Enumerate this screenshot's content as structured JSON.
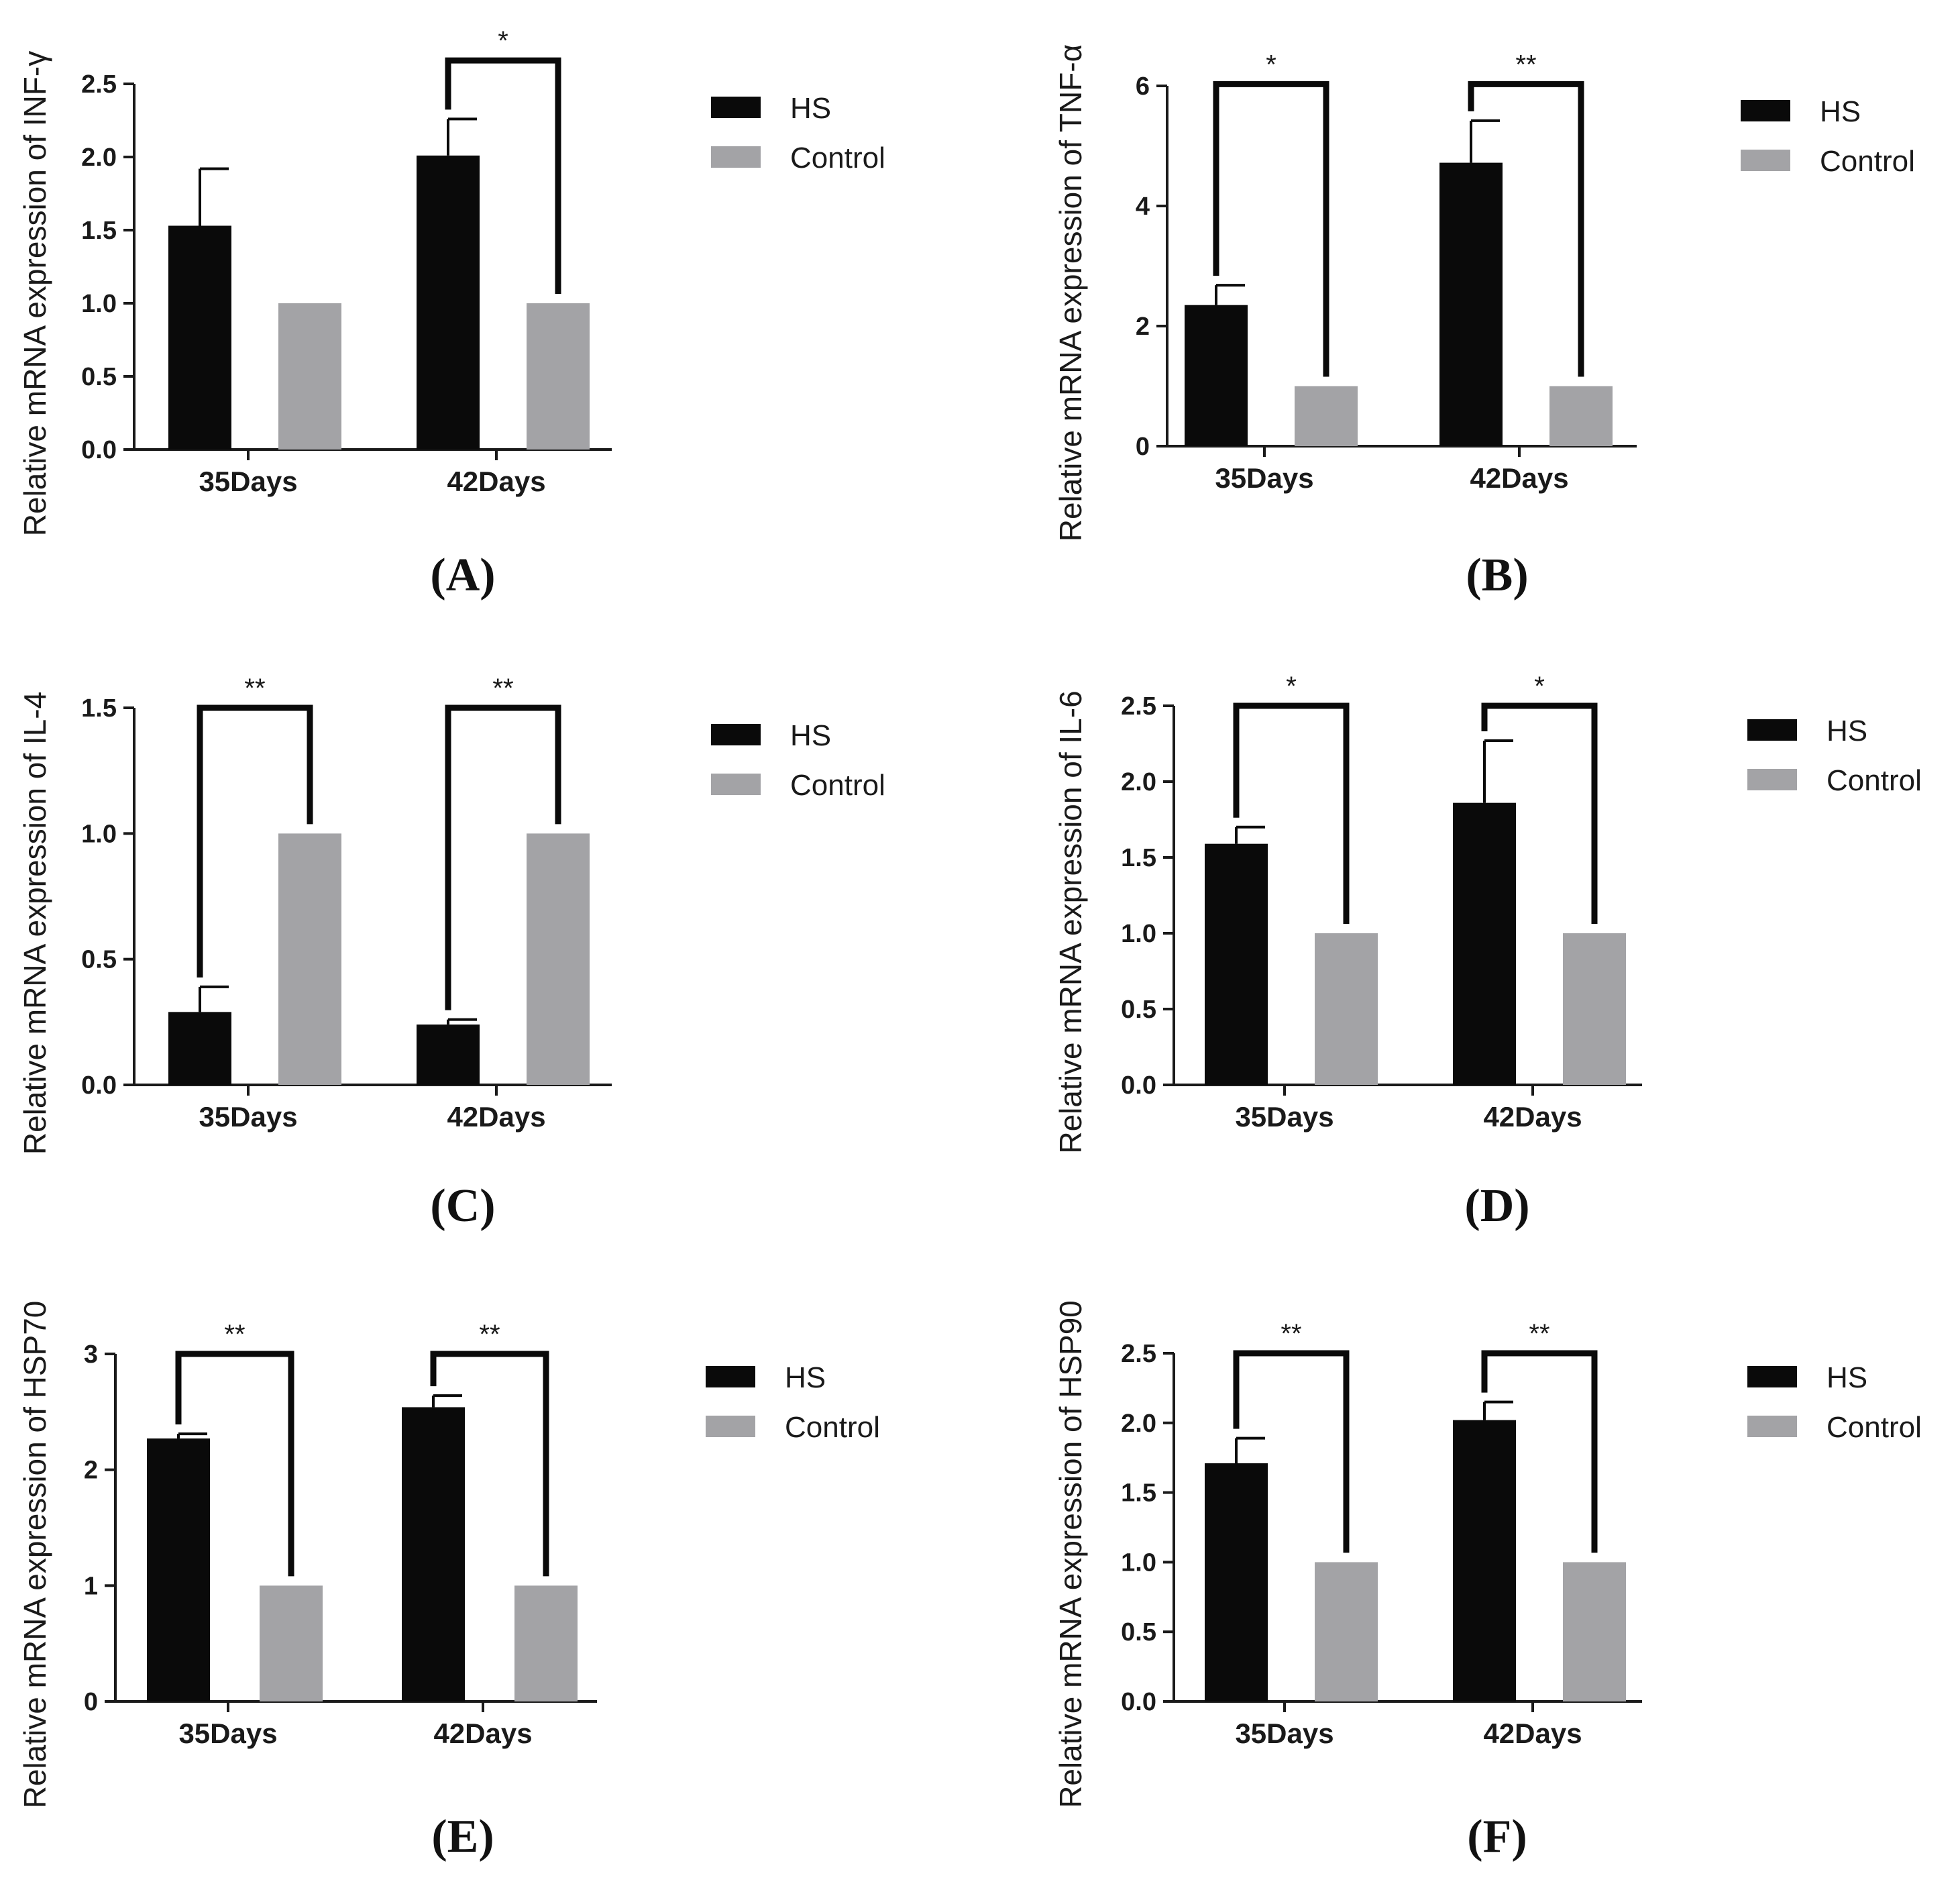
{
  "colors": {
    "hs": "#0a0a0a",
    "control": "#a3a3a6",
    "axis": "#1a1a1a",
    "bracket": "#0a0a0a"
  },
  "chart_data": [
    {
      "type": "bar",
      "panel": "(A)",
      "ylabel": "Relative mRNA expression of INF-γ",
      "categories": [
        "35Days",
        "42Days"
      ],
      "ylim": [
        0,
        2.5
      ],
      "yticks": [
        "0.0",
        "0.5",
        "1.0",
        "1.5",
        "2.0",
        "2.5"
      ],
      "series": [
        {
          "name": "HS",
          "values": [
            1.53,
            2.01
          ],
          "errors": [
            0.39,
            0.25
          ]
        },
        {
          "name": "Control",
          "values": [
            1.0,
            1.0
          ],
          "errors": [
            0,
            0
          ]
        }
      ],
      "significance": [
        {
          "category": 1,
          "label": "*",
          "y": 2.66
        }
      ],
      "legend": [
        "HS",
        "Control"
      ]
    },
    {
      "type": "bar",
      "panel": "(B)",
      "ylabel": "Relative mRNA expression of TNF-α",
      "categories": [
        "35Days",
        "42Days"
      ],
      "ylim": [
        0,
        6
      ],
      "yticks": [
        "0",
        "2",
        "4",
        "6"
      ],
      "series": [
        {
          "name": "HS",
          "values": [
            2.35,
            4.72
          ],
          "errors": [
            0.33,
            0.7
          ]
        },
        {
          "name": "Control",
          "values": [
            1.0,
            1.0
          ],
          "errors": [
            0,
            0
          ]
        }
      ],
      "significance": [
        {
          "category": 0,
          "label": "*",
          "y": 6.03
        },
        {
          "category": 1,
          "label": "**",
          "y": 6.03
        }
      ],
      "legend": [
        "HS",
        "Control"
      ]
    },
    {
      "type": "bar",
      "panel": "(C)",
      "ylabel": "Relative mRNA expression of  IL-4",
      "categories": [
        "35Days",
        "42Days"
      ],
      "ylim": [
        0,
        1.5
      ],
      "yticks": [
        "0.0",
        "0.5",
        "1.0",
        "1.5"
      ],
      "series": [
        {
          "name": "HS",
          "values": [
            0.29,
            0.24
          ],
          "errors": [
            0.1,
            0.02
          ]
        },
        {
          "name": "Control",
          "values": [
            1.0,
            1.0
          ],
          "errors": [
            0,
            0
          ]
        }
      ],
      "significance": [
        {
          "category": 0,
          "label": "**",
          "y": 1.5
        },
        {
          "category": 1,
          "label": "**",
          "y": 1.5
        }
      ],
      "legend": [
        "HS",
        "Control"
      ]
    },
    {
      "type": "bar",
      "panel": "(D)",
      "ylabel": "Relative mRNA expression of IL-6",
      "categories": [
        "35Days",
        "42Days"
      ],
      "ylim": [
        0,
        2.5
      ],
      "yticks": [
        "0.0",
        "0.5",
        "1.0",
        "1.5",
        "2.0",
        "2.5"
      ],
      "series": [
        {
          "name": "HS",
          "values": [
            1.59,
            1.86
          ],
          "errors": [
            0.11,
            0.41
          ]
        },
        {
          "name": "Control",
          "values": [
            1.0,
            1.0
          ],
          "errors": [
            0,
            0
          ]
        }
      ],
      "significance": [
        {
          "category": 0,
          "label": "*",
          "y": 2.5
        },
        {
          "category": 1,
          "label": "*",
          "y": 2.5
        }
      ],
      "legend": [
        "HS",
        "Control"
      ]
    },
    {
      "type": "bar",
      "panel": "(E)",
      "ylabel": "Relative mRNA expression of  HSP70",
      "categories": [
        "35Days",
        "42Days"
      ],
      "ylim": [
        0,
        3
      ],
      "yticks": [
        "0",
        "1",
        "2",
        "3"
      ],
      "series": [
        {
          "name": "HS",
          "values": [
            2.27,
            2.54
          ],
          "errors": [
            0.04,
            0.1
          ]
        },
        {
          "name": "Control",
          "values": [
            1.0,
            1.0
          ],
          "errors": [
            0,
            0
          ]
        }
      ],
      "significance": [
        {
          "category": 0,
          "label": "**",
          "y": 3.0
        },
        {
          "category": 1,
          "label": "**",
          "y": 3.0
        }
      ],
      "legend": [
        "HS",
        "Control"
      ]
    },
    {
      "type": "bar",
      "panel": "(F)",
      "ylabel": "Relative mRNA expression of  HSP90",
      "categories": [
        "35Days",
        "42Days"
      ],
      "ylim": [
        0,
        2.5
      ],
      "yticks": [
        "0.0",
        "0.5",
        "1.0",
        "1.5",
        "2.0",
        "2.5"
      ],
      "series": [
        {
          "name": "HS",
          "values": [
            1.71,
            2.02
          ],
          "errors": [
            0.18,
            0.13
          ]
        },
        {
          "name": "Control",
          "values": [
            1.0,
            1.0
          ],
          "errors": [
            0,
            0
          ]
        }
      ],
      "significance": [
        {
          "category": 0,
          "label": "**",
          "y": 2.5
        },
        {
          "category": 1,
          "label": "**",
          "y": 2.5
        }
      ],
      "legend": [
        "HS",
        "Control"
      ]
    }
  ]
}
